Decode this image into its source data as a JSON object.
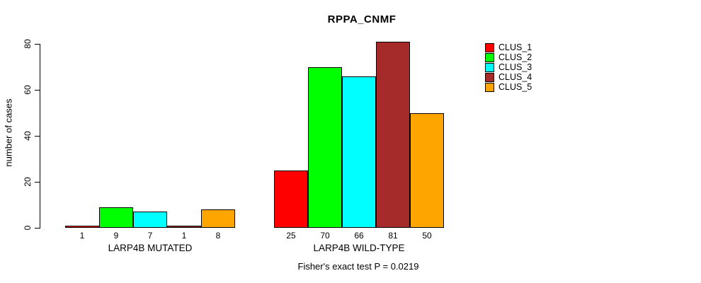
{
  "chart_data": {
    "type": "bar",
    "title": "RPPA_CNMF",
    "ylabel": "number of cases",
    "ylim": [
      0,
      80
    ],
    "yticks": [
      0,
      20,
      40,
      60,
      80
    ],
    "categories": [
      "LARP4B MUTATED",
      "LARP4B WILD-TYPE"
    ],
    "series": [
      {
        "name": "CLUS_1",
        "color": "#ff0000",
        "values": [
          1,
          25
        ]
      },
      {
        "name": "CLUS_2",
        "color": "#00ff00",
        "values": [
          9,
          70
        ]
      },
      {
        "name": "CLUS_3",
        "color": "#00ffff",
        "values": [
          7,
          66
        ]
      },
      {
        "name": "CLUS_4",
        "color": "#a52a2a",
        "values": [
          1,
          81
        ]
      },
      {
        "name": "CLUS_5",
        "color": "#ffa500",
        "values": [
          8,
          50
        ]
      }
    ],
    "bar_value_labels_shown": true,
    "annotation": "Fisher's exact test P = 0.0219",
    "legend_position": "right",
    "grid": false,
    "background": "#ffffff"
  }
}
